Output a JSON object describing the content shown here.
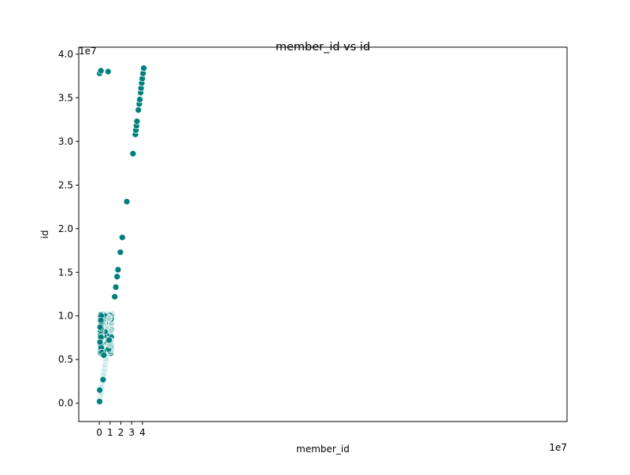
{
  "chart_data": {
    "type": "scatter",
    "title": "member_id vs id",
    "xlabel": "member_id",
    "ylabel": "id",
    "x_offset_label": "1e7",
    "y_offset_label": "1e7",
    "xlim": [
      -19000000.0,
      433000000.0
    ],
    "ylim": [
      -2100000.0,
      40800000.0
    ],
    "x_ticks": [
      0,
      10000000.0,
      20000000.0,
      30000000.0,
      40000000.0
    ],
    "x_tick_labels": [
      "0",
      "1",
      "2",
      "3",
      "4"
    ],
    "y_ticks": [
      0,
      5000000.0,
      10000000.0,
      15000000.0,
      20000000.0,
      25000000.0,
      30000000.0,
      35000000.0,
      40000000.0
    ],
    "y_tick_labels": [
      "0.0",
      "0.5",
      "1.0",
      "1.5",
      "2.0",
      "2.5",
      "3.0",
      "3.5",
      "4.0"
    ],
    "grid": false,
    "marker_color": "#007f7f",
    "marker_edge_color": "#ffffff",
    "diagonal_band": {
      "description": "dense diagonal cluster of points where member_id ≈ id",
      "x_range": [
        0,
        12000000.0
      ],
      "y_range": [
        0,
        10300000.0
      ],
      "upper_x_range": [
        37000000.0,
        41500000.0
      ]
    },
    "dense_cluster": {
      "x_range": [
        1000000.0,
        11200000.0
      ],
      "y_range": [
        5600000.0,
        10200000.0
      ]
    },
    "points": [
      {
        "x": 300000.0,
        "y": 37800000.0
      },
      {
        "x": 1500000.0,
        "y": 38100000.0
      },
      {
        "x": 8200000.0,
        "y": 38000000.0
      },
      {
        "x": 300000.0,
        "y": 200000.0
      },
      {
        "x": 400000.0,
        "y": 1500000.0
      },
      {
        "x": 800000.0,
        "y": 8700000.0
      },
      {
        "x": 700000.0,
        "y": 7000000.0
      },
      {
        "x": 1300000.0,
        "y": 5800000.0
      },
      {
        "x": 2300000.0,
        "y": 5800000.0
      },
      {
        "x": 3500000.0,
        "y": 2700000.0
      },
      {
        "x": 4200000.0,
        "y": 5500000.0
      },
      {
        "x": 14300000.0,
        "y": 12200000.0
      },
      {
        "x": 15300000.0,
        "y": 13300000.0
      },
      {
        "x": 16500000.0,
        "y": 14500000.0
      },
      {
        "x": 17400000.0,
        "y": 15300000.0
      },
      {
        "x": 19500000.0,
        "y": 17300000.0
      },
      {
        "x": 21300000.0,
        "y": 19000000.0
      },
      {
        "x": 25500000.0,
        "y": 23100000.0
      },
      {
        "x": 31200000.0,
        "y": 28600000.0
      },
      {
        "x": 33400000.0,
        "y": 30800000.0
      },
      {
        "x": 33900000.0,
        "y": 31300000.0
      },
      {
        "x": 34400000.0,
        "y": 31800000.0
      },
      {
        "x": 34900000.0,
        "y": 32300000.0
      },
      {
        "x": 36200000.0,
        "y": 33600000.0
      },
      {
        "x": 37000000.0,
        "y": 34300000.0
      },
      {
        "x": 37500000.0,
        "y": 34800000.0
      },
      {
        "x": 38300000.0,
        "y": 35600000.0
      },
      {
        "x": 38700000.0,
        "y": 36100000.0
      },
      {
        "x": 39300000.0,
        "y": 36700000.0
      },
      {
        "x": 39800000.0,
        "y": 37200000.0
      },
      {
        "x": 40500000.0,
        "y": 37800000.0
      },
      {
        "x": 41200000.0,
        "y": 38400000.0
      }
    ]
  }
}
